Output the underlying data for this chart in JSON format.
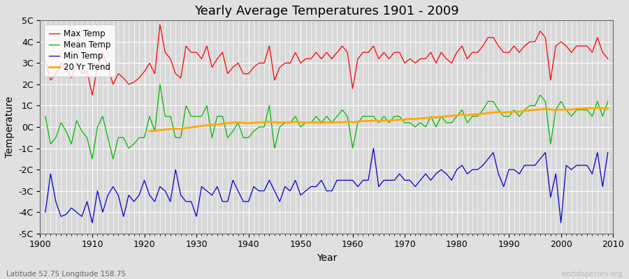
{
  "title": "Yearly Average Temperatures 1901 - 2009",
  "xlabel": "Year",
  "ylabel": "Temperature",
  "lat_lon_label": "Latitude 52.75 Longitude 158.75",
  "watermark": "worldspecies.org",
  "years": [
    1901,
    1902,
    1903,
    1904,
    1905,
    1906,
    1907,
    1908,
    1909,
    1910,
    1911,
    1912,
    1913,
    1914,
    1915,
    1916,
    1917,
    1918,
    1919,
    1920,
    1921,
    1922,
    1923,
    1924,
    1925,
    1926,
    1927,
    1928,
    1929,
    1930,
    1931,
    1932,
    1933,
    1934,
    1935,
    1936,
    1937,
    1938,
    1939,
    1940,
    1941,
    1942,
    1943,
    1944,
    1945,
    1946,
    1947,
    1948,
    1949,
    1950,
    1951,
    1952,
    1953,
    1954,
    1955,
    1956,
    1957,
    1958,
    1959,
    1960,
    1961,
    1962,
    1963,
    1964,
    1965,
    1966,
    1967,
    1968,
    1969,
    1970,
    1971,
    1972,
    1973,
    1974,
    1975,
    1976,
    1977,
    1978,
    1979,
    1980,
    1981,
    1982,
    1983,
    1984,
    1985,
    1986,
    1987,
    1988,
    1989,
    1990,
    1991,
    1992,
    1993,
    1994,
    1995,
    1996,
    1997,
    1998,
    1999,
    2000,
    2001,
    2002,
    2003,
    2004,
    2005,
    2006,
    2007,
    2008,
    2009
  ],
  "max_temp": [
    3.1,
    2.2,
    2.5,
    3.0,
    2.8,
    2.3,
    3.0,
    2.5,
    2.6,
    1.5,
    2.8,
    3.5,
    2.8,
    2.0,
    2.5,
    2.3,
    2.0,
    2.1,
    2.3,
    2.6,
    3.0,
    2.5,
    4.8,
    3.5,
    3.2,
    2.5,
    2.3,
    3.8,
    3.5,
    3.5,
    3.2,
    3.8,
    2.8,
    3.2,
    3.5,
    2.5,
    2.8,
    3.0,
    2.5,
    2.5,
    2.8,
    3.0,
    3.0,
    3.8,
    2.2,
    2.8,
    3.0,
    3.0,
    3.5,
    3.0,
    3.2,
    3.2,
    3.5,
    3.2,
    3.5,
    3.2,
    3.5,
    3.8,
    3.5,
    1.8,
    3.2,
    3.5,
    3.5,
    3.8,
    3.2,
    3.5,
    3.2,
    3.5,
    3.5,
    3.0,
    3.2,
    3.0,
    3.2,
    3.2,
    3.5,
    3.0,
    3.5,
    3.2,
    3.0,
    3.5,
    3.8,
    3.2,
    3.5,
    3.5,
    3.8,
    4.2,
    4.2,
    3.8,
    3.5,
    3.5,
    3.8,
    3.5,
    3.8,
    4.0,
    4.0,
    4.5,
    4.2,
    2.2,
    3.8,
    4.0,
    3.8,
    3.5,
    3.8,
    3.8,
    3.8,
    3.5,
    4.2,
    3.5,
    3.2
  ],
  "mean_temp": [
    0.5,
    -0.8,
    -0.5,
    0.2,
    -0.2,
    -0.8,
    0.3,
    -0.2,
    -0.5,
    -1.5,
    0.0,
    0.5,
    -0.5,
    -1.5,
    -0.5,
    -0.5,
    -1.0,
    -0.8,
    -0.5,
    -0.5,
    0.5,
    -0.2,
    2.0,
    0.5,
    0.5,
    -0.5,
    -0.5,
    1.0,
    0.5,
    0.5,
    0.5,
    1.0,
    -0.5,
    0.5,
    0.5,
    -0.5,
    -0.2,
    0.2,
    -0.5,
    -0.5,
    -0.2,
    0.0,
    0.0,
    1.0,
    -1.0,
    0.0,
    0.2,
    0.2,
    0.5,
    0.0,
    0.2,
    0.2,
    0.5,
    0.2,
    0.5,
    0.2,
    0.5,
    0.8,
    0.5,
    -1.0,
    0.2,
    0.5,
    0.5,
    0.5,
    0.2,
    0.5,
    0.2,
    0.5,
    0.5,
    0.2,
    0.2,
    0.0,
    0.2,
    0.0,
    0.5,
    0.0,
    0.5,
    0.2,
    0.2,
    0.5,
    0.8,
    0.2,
    0.5,
    0.5,
    0.8,
    1.2,
    1.2,
    0.8,
    0.5,
    0.5,
    0.8,
    0.5,
    0.8,
    1.0,
    1.0,
    1.5,
    1.2,
    -0.8,
    0.8,
    1.2,
    0.8,
    0.5,
    0.8,
    0.8,
    0.8,
    0.5,
    1.2,
    0.5,
    1.2
  ],
  "min_temp": [
    -4.0,
    -2.2,
    -3.5,
    -4.2,
    -4.1,
    -3.8,
    -4.0,
    -4.2,
    -3.5,
    -4.5,
    -3.0,
    -4.0,
    -3.2,
    -2.8,
    -3.2,
    -4.2,
    -3.2,
    -3.5,
    -3.2,
    -2.5,
    -3.2,
    -3.5,
    -2.8,
    -3.0,
    -3.5,
    -2.0,
    -3.2,
    -3.5,
    -3.5,
    -4.2,
    -2.8,
    -3.0,
    -3.2,
    -2.8,
    -3.5,
    -3.5,
    -2.5,
    -3.0,
    -3.5,
    -3.5,
    -2.8,
    -3.0,
    -3.0,
    -2.5,
    -3.0,
    -3.5,
    -2.8,
    -3.0,
    -2.5,
    -3.2,
    -3.0,
    -2.8,
    -2.8,
    -2.5,
    -3.0,
    -3.0,
    -2.5,
    -2.5,
    -2.5,
    -2.5,
    -2.8,
    -2.5,
    -2.5,
    -1.0,
    -2.8,
    -2.5,
    -2.5,
    -2.5,
    -2.2,
    -2.5,
    -2.5,
    -2.8,
    -2.5,
    -2.2,
    -2.5,
    -2.2,
    -2.0,
    -2.2,
    -2.5,
    -2.0,
    -1.8,
    -2.2,
    -2.0,
    -2.0,
    -1.8,
    -1.5,
    -1.2,
    -2.2,
    -2.8,
    -2.0,
    -2.0,
    -2.2,
    -1.8,
    -1.8,
    -1.8,
    -1.5,
    -1.2,
    -3.3,
    -2.2,
    -4.5,
    -1.8,
    -2.0,
    -1.8,
    -1.8,
    -1.8,
    -2.2,
    -1.2,
    -2.8,
    -1.2
  ],
  "trend_20yr": [
    null,
    null,
    null,
    null,
    null,
    null,
    null,
    null,
    null,
    null,
    null,
    null,
    null,
    null,
    null,
    null,
    null,
    null,
    null,
    null,
    -0.2,
    -0.18,
    -0.15,
    -0.12,
    -0.1,
    -0.08,
    -0.1,
    -0.05,
    -0.02,
    0.02,
    0.05,
    0.08,
    0.1,
    0.12,
    0.15,
    0.18,
    0.2,
    0.22,
    0.2,
    0.18,
    0.2,
    0.22,
    0.22,
    0.25,
    0.22,
    0.2,
    0.22,
    0.22,
    0.25,
    0.22,
    0.2,
    0.22,
    0.22,
    0.2,
    0.22,
    0.2,
    0.22,
    0.22,
    0.25,
    0.22,
    0.25,
    0.28,
    0.28,
    0.3,
    0.28,
    0.3,
    0.3,
    0.32,
    0.35,
    0.35,
    0.38,
    0.38,
    0.4,
    0.42,
    0.45,
    0.45,
    0.48,
    0.5,
    0.52,
    0.55,
    0.58,
    0.55,
    0.58,
    0.6,
    0.62,
    0.65,
    0.68,
    0.7,
    0.68,
    0.7,
    0.72,
    0.72,
    0.75,
    0.78,
    0.8,
    0.82,
    0.85,
    0.82,
    0.8,
    0.82,
    0.8,
    0.82,
    0.85,
    0.85,
    0.88,
    0.88,
    0.9,
    0.88,
    0.85
  ],
  "max_color": "#ff0000",
  "mean_color": "#00bb00",
  "min_color": "#0000cc",
  "trend_color": "#ffaa00",
  "bg_color": "#e0e0e0",
  "plot_bg_color": "#d8d8d8",
  "grid_color": "#ffffff",
  "ylim": [
    -5,
    5
  ],
  "yticks": [
    -5,
    -4,
    -3,
    -2,
    -1,
    0,
    1,
    2,
    3,
    4,
    5
  ],
  "ytick_labels": [
    "-5C",
    "-4C",
    "-3C",
    "-2C",
    "-1C",
    "0C",
    "1C",
    "2C",
    "3C",
    "4C",
    "5C"
  ],
  "figsize": [
    9.0,
    4.0
  ],
  "dpi": 100
}
